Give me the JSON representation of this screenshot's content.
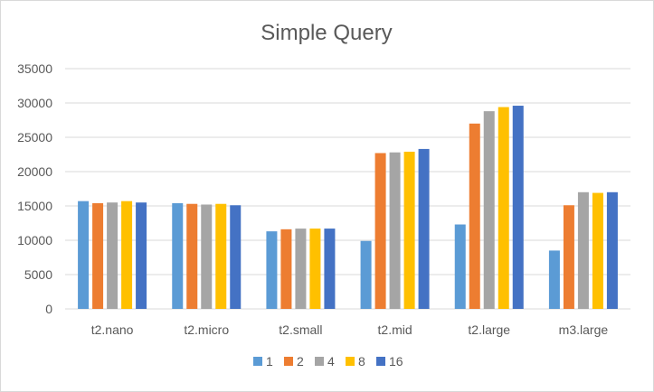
{
  "chart_data": {
    "type": "bar",
    "title": "Simple Query",
    "xlabel": "",
    "ylabel": "",
    "categories": [
      "t2.nano",
      "t2.micro",
      "t2.small",
      "t2.mid",
      "t2.large",
      "m3.large"
    ],
    "series": [
      {
        "name": "1",
        "color": "#5B9BD5",
        "values": [
          15700,
          15400,
          11300,
          9900,
          12300,
          8500
        ]
      },
      {
        "name": "2",
        "color": "#ED7D31",
        "values": [
          15400,
          15300,
          11600,
          22700,
          27000,
          15100
        ]
      },
      {
        "name": "4",
        "color": "#A5A5A5",
        "values": [
          15500,
          15200,
          11700,
          22800,
          28800,
          17000
        ]
      },
      {
        "name": "8",
        "color": "#FFC000",
        "values": [
          15700,
          15300,
          11700,
          22900,
          29400,
          16900
        ]
      },
      {
        "name": "16",
        "color": "#4472C4",
        "values": [
          15500,
          15100,
          11700,
          23300,
          29600,
          17000
        ]
      }
    ],
    "yticks": [
      "0",
      "5000",
      "10000",
      "15000",
      "20000",
      "25000",
      "30000",
      "35000"
    ],
    "ylim": [
      0,
      35000
    ],
    "grid": true,
    "legend": "bottom",
    "gridline_color": "#d9d9d9"
  }
}
